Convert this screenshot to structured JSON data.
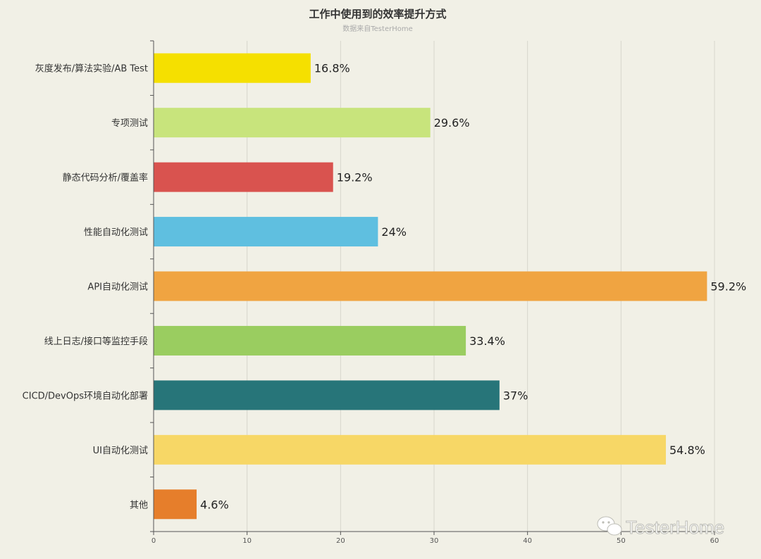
{
  "chart_data": {
    "type": "bar",
    "orientation": "horizontal",
    "title": "工作中使用到的效率提升方式",
    "subtitle": "数据来自TesterHome",
    "categories": [
      "灰度发布/算法实验/AB Test",
      "专项测试",
      "静态代码分析/覆盖率",
      "性能自动化测试",
      "API自动化测试",
      "线上日志/接口等监控手段",
      "CICD/DevOps环境自动化部署",
      "UI自动化测试",
      "其他"
    ],
    "values": [
      16.8,
      29.6,
      19.2,
      24,
      59.2,
      33.4,
      37,
      54.8,
      4.6
    ],
    "value_labels": [
      "16.8%",
      "29.6%",
      "19.2%",
      "24%",
      "59.2%",
      "33.4%",
      "37%",
      "54.8%",
      "4.6%"
    ],
    "colors": [
      "#f5e000",
      "#c8e47c",
      "#d9534f",
      "#5fbfe0",
      "#f0a441",
      "#9acd60",
      "#277579",
      "#f7d766",
      "#e67e2b"
    ],
    "xlim": [
      0,
      60
    ],
    "xticks": [
      "0",
      "10",
      "20",
      "30",
      "40",
      "50",
      "60"
    ],
    "grid": true
  },
  "watermark": {
    "text": "TesterHome",
    "icon": "wechat-icon"
  }
}
